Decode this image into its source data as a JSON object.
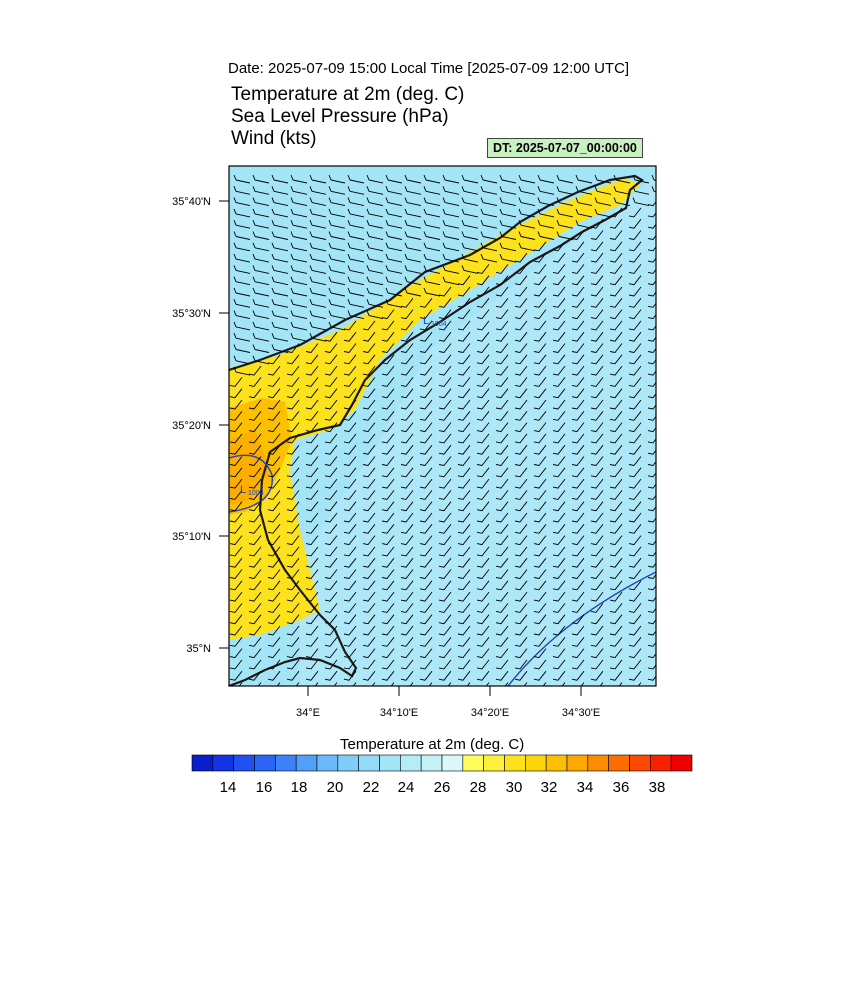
{
  "header": {
    "date_line": "Date: 2025-07-09  15:00 Local Time [2025-07-09  12:00 UTC]",
    "titles": [
      "Temperature at 2m   (deg. C)",
      "Sea Level Pressure   (hPa)",
      "Wind   (kts)"
    ],
    "dt_badge": "DT: 2025-07-07_00:00:00"
  },
  "map": {
    "lat_labels": [
      "35°40'N",
      "35°30'N",
      "35°20'N",
      "35°10'N",
      "35°N"
    ],
    "lon_labels": [
      "34°E",
      "34°10'E",
      "34°20'E",
      "34°30'E"
    ],
    "pressure_labels": [
      "1004",
      "1003"
    ],
    "pressure_marks": [
      "L",
      "L"
    ]
  },
  "colorbar": {
    "title": "Temperature at 2m  (deg. C)",
    "labels": [
      "14",
      "16",
      "18",
      "20",
      "22",
      "24",
      "26",
      "28",
      "30",
      "32",
      "34",
      "36",
      "38"
    ],
    "colors": [
      "#0a1ecc",
      "#1432e6",
      "#2050f0",
      "#2a64f5",
      "#3c82f8",
      "#50a0fa",
      "#6cb8fb",
      "#82ccfc",
      "#94daf9",
      "#a4e4f7",
      "#b4ecf7",
      "#c4f2f8",
      "#d8f8fa",
      "#fcfc5a",
      "#fcf03c",
      "#fce21c",
      "#fcd40a",
      "#fcc000",
      "#fca800",
      "#fc8c00",
      "#fc6e00",
      "#fc4800",
      "#fa2000",
      "#f00000"
    ]
  }
}
